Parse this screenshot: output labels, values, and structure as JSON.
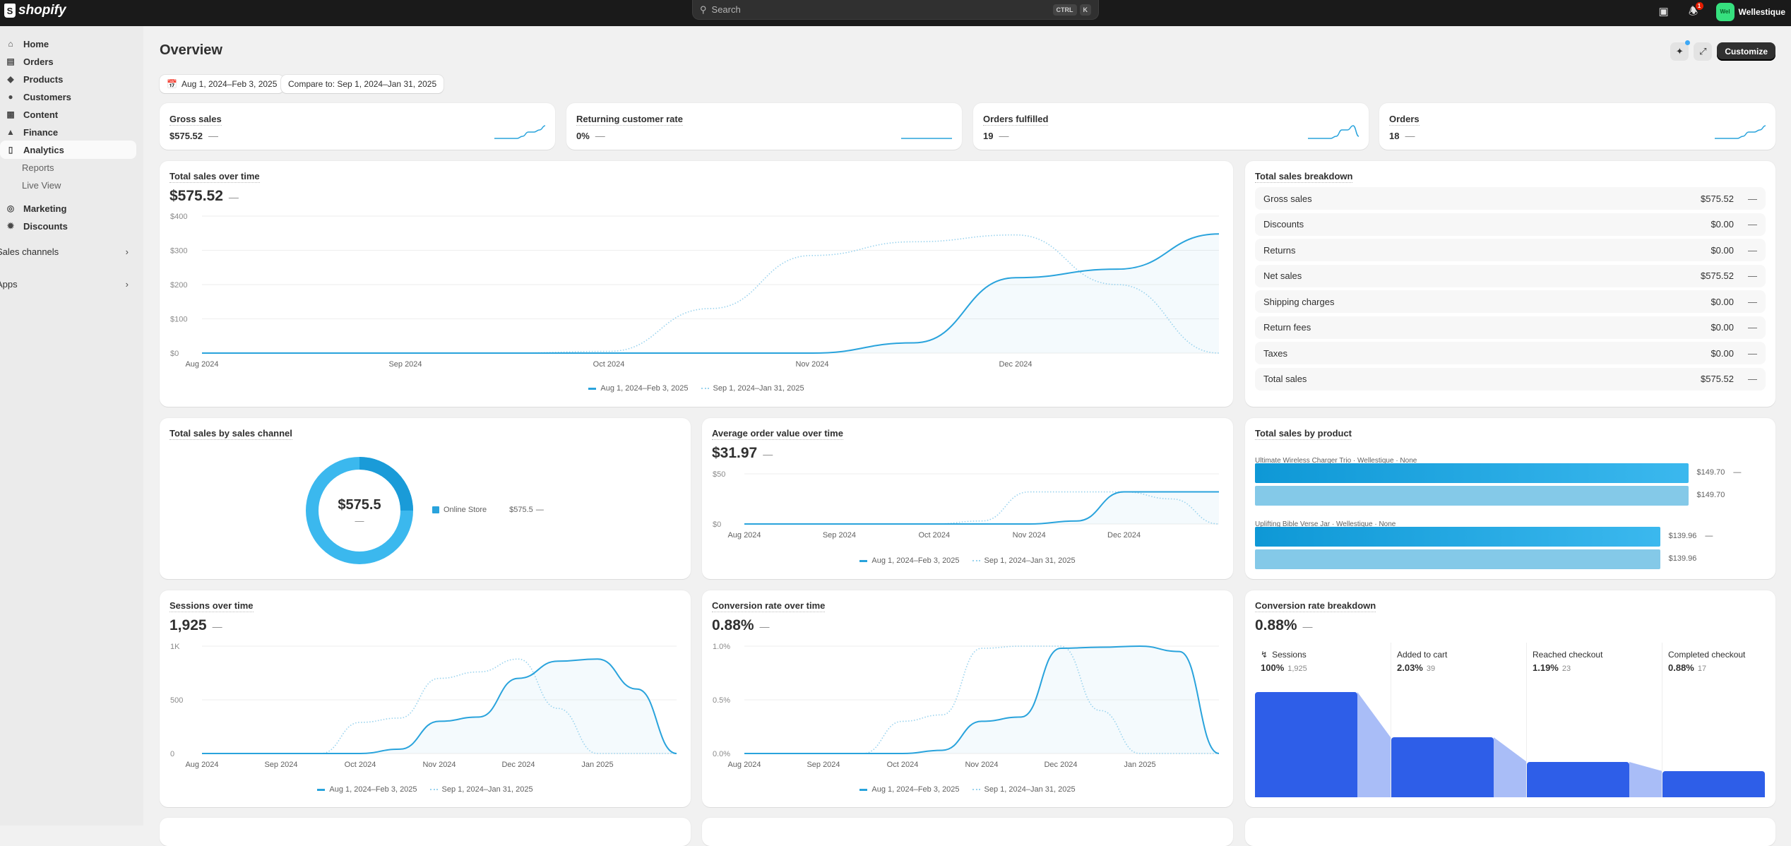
{
  "topbar": {
    "brand": "shopify",
    "search_placeholder": "Search",
    "kbd": [
      "CTRL",
      "K"
    ],
    "notification_count": "1",
    "avatar_initials": "Wel",
    "store_name": "Wellestique"
  },
  "sidebar": {
    "items": [
      {
        "label": "Home",
        "icon": "home-icon"
      },
      {
        "label": "Orders",
        "icon": "inbox-icon"
      },
      {
        "label": "Products",
        "icon": "tag-icon"
      },
      {
        "label": "Customers",
        "icon": "person-icon"
      },
      {
        "label": "Content",
        "icon": "content-icon"
      },
      {
        "label": "Finance",
        "icon": "bank-icon"
      },
      {
        "label": "Analytics",
        "icon": "chart-icon"
      }
    ],
    "sub_items": [
      "Reports",
      "Live View"
    ],
    "items2": [
      {
        "label": "Marketing",
        "icon": "target-icon"
      },
      {
        "label": "Discounts",
        "icon": "discount-icon"
      }
    ],
    "groups": [
      "Sales channels",
      "Apps"
    ]
  },
  "header": {
    "title": "Overview",
    "customize": "Customize",
    "date_range": "Aug 1, 2024–Feb 3, 2025",
    "compare": "Compare to: Sep 1, 2024–Jan 31, 2025"
  },
  "kpis": [
    {
      "label": "Gross sales",
      "value": "$575.52",
      "change": "—",
      "spark": [
        0,
        0,
        0,
        0,
        0,
        1,
        3,
        3,
        4,
        6
      ]
    },
    {
      "label": "Returning customer rate",
      "value": "0%",
      "change": "—",
      "spark": [
        0,
        0,
        0,
        0,
        0,
        0,
        0,
        0,
        0,
        0
      ]
    },
    {
      "label": "Orders fulfilled",
      "value": "19",
      "change": "—",
      "spark": [
        0,
        0,
        0,
        0,
        0,
        1,
        4,
        4,
        6,
        1
      ]
    },
    {
      "label": "Orders",
      "value": "18",
      "change": "—",
      "spark": [
        0,
        0,
        0,
        0,
        0,
        1,
        3,
        3,
        4,
        6
      ]
    }
  ],
  "total_sales": {
    "title": "Total sales over time",
    "value": "$575.52",
    "change": "—"
  },
  "breakdown": {
    "title": "Total sales breakdown",
    "rows": [
      {
        "label": "Gross sales",
        "value": "$575.52",
        "change": "—"
      },
      {
        "label": "Discounts",
        "value": "$0.00",
        "change": "—"
      },
      {
        "label": "Returns",
        "value": "$0.00",
        "change": "—"
      },
      {
        "label": "Net sales",
        "value": "$575.52",
        "change": "—"
      },
      {
        "label": "Shipping charges",
        "value": "$0.00",
        "change": "—"
      },
      {
        "label": "Return fees",
        "value": "$0.00",
        "change": "—"
      },
      {
        "label": "Taxes",
        "value": "$0.00",
        "change": "—"
      },
      {
        "label": "Total sales",
        "value": "$575.52",
        "change": "—"
      }
    ]
  },
  "channel": {
    "title": "Total sales by sales channel",
    "center_value": "$575.5",
    "center_change": "—",
    "legend_label": "Online Store",
    "legend_value": "$575.5",
    "legend_change": "—",
    "color": "#29a3dc"
  },
  "aov": {
    "title": "Average order value over time",
    "value": "$31.97",
    "change": "—"
  },
  "products": {
    "title": "Total sales by product",
    "items": [
      {
        "name": "Ultimate Wireless Charger Trio · Wellestique · None",
        "current": 149.7,
        "previous": 149.7,
        "current_label": "$149.70",
        "previous_label": "$149.70",
        "change": "—"
      },
      {
        "name": "Uplifting Bible Verse Jar · Wellestique · None",
        "current": 139.96,
        "previous": 139.96,
        "current_label": "$139.96",
        "previous_label": "$139.96",
        "change": "—"
      }
    ]
  },
  "sessions": {
    "title": "Sessions over time",
    "value": "1,925",
    "change": "—"
  },
  "conversion": {
    "title": "Conversion rate over time",
    "value": "0.88%",
    "change": "—"
  },
  "funnel": {
    "title": "Conversion rate breakdown",
    "value": "0.88%",
    "change": "—",
    "steps": [
      {
        "label": "Sessions",
        "pct": "100%",
        "count": "1,925"
      },
      {
        "label": "Added to cart",
        "pct": "2.03%",
        "count": "39"
      },
      {
        "label": "Reached checkout",
        "pct": "1.19%",
        "count": "23"
      },
      {
        "label": "Completed checkout",
        "pct": "0.88%",
        "count": "17"
      }
    ]
  },
  "legend": {
    "current": "Aug 1, 2024–Feb 3, 2025",
    "previous": "Sep 1, 2024–Jan 31, 2025"
  },
  "chart_data": [
    {
      "id": "total_sales",
      "type": "line",
      "x": [
        "Aug 1",
        "Aug 15",
        "Sep 1",
        "Sep 15",
        "Oct 1",
        "Oct 15",
        "Nov 1",
        "Nov 15",
        "Dec 1",
        "Dec 15",
        "Jan 1"
      ],
      "x_labels": [
        "Aug 2024",
        "Sep 2024",
        "Oct 2024",
        "Nov 2024",
        "Dec 2024"
      ],
      "ylim": [
        0,
        400
      ],
      "y_ticks": [
        0,
        100,
        200,
        300,
        400
      ],
      "y_tick_labels": [
        "$0",
        "$100",
        "$200",
        "$300",
        "$400"
      ],
      "series": [
        {
          "name": "Aug 1, 2024–Feb 3, 2025",
          "values": [
            0,
            0,
            0,
            0,
            0,
            0,
            0,
            30,
            220,
            245,
            348
          ]
        },
        {
          "name": "Sep 1, 2024–Jan 31, 2025",
          "values": [
            0,
            0,
            0,
            0,
            5,
            130,
            285,
            325,
            345,
            200,
            0
          ],
          "style": "dotted"
        }
      ]
    },
    {
      "id": "aov",
      "type": "line",
      "x": [
        "Aug 1",
        "Aug 15",
        "Sep 1",
        "Sep 15",
        "Oct 1",
        "Oct 15",
        "Nov 1",
        "Nov 15",
        "Dec 1",
        "Dec 15",
        "Jan 1"
      ],
      "x_labels": [
        "Aug 2024",
        "Sep 2024",
        "Oct 2024",
        "Nov 2024",
        "Dec 2024"
      ],
      "ylim": [
        0,
        50
      ],
      "y_ticks": [
        0,
        50
      ],
      "y_tick_labels": [
        "$0",
        "$50"
      ],
      "series": [
        {
          "name": "Aug 1, 2024–Feb 3, 2025",
          "values": [
            0,
            0,
            0,
            0,
            0,
            0,
            0,
            3,
            32,
            32,
            32
          ]
        },
        {
          "name": "Sep 1, 2024–Jan 31, 2025",
          "values": [
            0,
            0,
            0,
            0,
            0,
            3,
            32,
            32,
            32,
            25,
            0
          ],
          "style": "dotted"
        }
      ]
    },
    {
      "id": "sessions",
      "type": "line",
      "x": [
        "Aug 1",
        "Aug 15",
        "Sep 1",
        "Sep 15",
        "Oct 1",
        "Oct 15",
        "Nov 1",
        "Nov 15",
        "Dec 1",
        "Dec 15",
        "Jan 1",
        "Jan 15",
        "Feb 1"
      ],
      "x_labels": [
        "Aug 2024",
        "Sep 2024",
        "Oct 2024",
        "Nov 2024",
        "Dec 2024",
        "Jan 2025"
      ],
      "ylim": [
        0,
        1000
      ],
      "y_ticks": [
        0,
        500,
        1000
      ],
      "y_tick_labels": [
        "0",
        "500",
        "1K"
      ],
      "series": [
        {
          "name": "Aug 1, 2024–Feb 3, 2025",
          "values": [
            0,
            0,
            0,
            0,
            0,
            40,
            300,
            340,
            700,
            860,
            880,
            600,
            0
          ]
        },
        {
          "name": "Sep 1, 2024–Jan 31, 2025",
          "values": [
            0,
            0,
            0,
            0,
            290,
            330,
            700,
            760,
            880,
            420,
            0,
            0,
            0
          ],
          "style": "dotted"
        }
      ]
    },
    {
      "id": "conversion",
      "type": "line",
      "x": [
        "Aug 1",
        "Aug 15",
        "Sep 1",
        "Sep 15",
        "Oct 1",
        "Oct 15",
        "Nov 1",
        "Nov 15",
        "Dec 1",
        "Dec 15",
        "Jan 1",
        "Jan 15",
        "Feb 1"
      ],
      "x_labels": [
        "Aug 2024",
        "Sep 2024",
        "Oct 2024",
        "Nov 2024",
        "Dec 2024",
        "Jan 2025"
      ],
      "ylim": [
        0,
        1.0
      ],
      "y_ticks": [
        0,
        0.5,
        1.0
      ],
      "y_tick_labels": [
        "0.0%",
        "0.5%",
        "1.0%"
      ],
      "series": [
        {
          "name": "Aug 1, 2024–Feb 3, 2025",
          "values": [
            0,
            0,
            0,
            0,
            0,
            0.03,
            0.3,
            0.34,
            0.98,
            0.99,
            1.0,
            0.95,
            0
          ]
        },
        {
          "name": "Sep 1, 2024–Jan 31, 2025",
          "values": [
            0,
            0,
            0,
            0,
            0.3,
            0.36,
            0.98,
            1.0,
            1.0,
            0.4,
            0,
            0,
            0
          ],
          "style": "dotted"
        }
      ]
    },
    {
      "id": "channel",
      "type": "pie",
      "categories": [
        "Online Store"
      ],
      "values": [
        575.5
      ]
    }
  ],
  "colors": {
    "line": "#29a3dc",
    "line_prev": "#9ad3ee",
    "funnel": "#2e5ee8"
  }
}
